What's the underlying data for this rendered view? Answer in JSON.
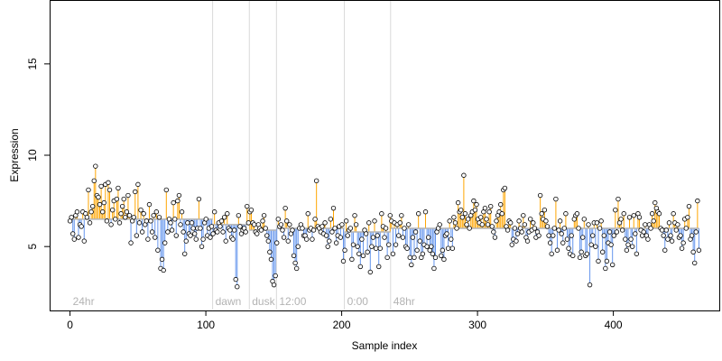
{
  "chart_data": {
    "type": "scatter",
    "title": "",
    "xlabel": "Sample index",
    "ylabel": "Expression",
    "xlim": [
      -15,
      478
    ],
    "ylim": [
      1.5,
      18.5
    ],
    "x_ticks": [
      0,
      100,
      200,
      300,
      400
    ],
    "y_ticks": [
      5,
      10,
      15
    ],
    "grid": false,
    "legend": "none",
    "colors": {
      "above_baseline": "#ffa500",
      "below_baseline": "#6495ed",
      "baseline": "#b3b3b3",
      "point_fill": "#ffffff",
      "point_stroke": "#000000",
      "divider": "#d9d9d9"
    },
    "segments": [
      {
        "label": "24hr",
        "start": 0,
        "baseline": 6.5
      },
      {
        "label": "dawn",
        "start": 105,
        "baseline": 6.2
      },
      {
        "label": "dusk",
        "start": 132,
        "baseline": 5.9
      },
      {
        "label": "12:00",
        "start": 152,
        "baseline": 6.0
      },
      {
        "label": "0:00",
        "start": 202,
        "baseline": 5.8
      },
      {
        "label": "48hr",
        "start": 236,
        "baseline": 6.0
      }
    ],
    "x_max": 463,
    "series": [
      {
        "values": [
          6.4,
          6.6,
          5.7,
          5.4,
          6.7,
          6.9,
          5.5,
          6.2,
          6.1,
          6.9,
          5.3,
          6.8,
          6.6,
          8.1,
          6.3,
          6.9,
          7.2,
          8.6,
          9.4,
          7.8,
          7.7,
          7.3,
          8.3,
          6.9,
          7.4,
          8.4,
          6.4,
          8.5,
          8.1,
          6.2,
          7.0,
          7.5,
          6.5,
          7.6,
          8.2,
          6.3,
          6.8,
          7.2,
          7.6,
          6.6,
          6.9,
          7.8,
          6.7,
          5.2,
          6.4,
          6.6,
          8.0,
          5.6,
          8.4,
          6.3,
          7.0,
          5.8,
          6.8,
          6.2,
          6.4,
          5.4,
          7.3,
          6.4,
          5.8,
          6.7,
          5.5,
          6.9,
          4.8,
          6.6,
          3.8,
          4.3,
          3.7,
          5.2,
          8.1,
          5.8,
          6.5,
          6.3,
          5.9,
          7.4,
          6.5,
          5.6,
          7.5,
          7.8,
          6.2,
          6.9,
          5.8,
          4.6,
          5.3,
          6.3,
          5.7,
          5.6,
          6.3,
          6.0,
          5.7,
          5.4,
          6.0,
          7.6,
          6.0,
          5.0,
          5.4,
          6.3,
          6.5,
          5.6,
          6.0,
          5.5,
          6.1,
          5.7,
          6.9,
          5.9,
          5.8,
          6.3,
          6.1,
          6.4,
          5.8,
          6.6,
          5.3,
          6.8,
          6.0,
          5.9,
          5.5,
          5.4,
          5.9,
          3.2,
          2.8,
          6.7,
          6.1,
          5.7,
          5.9,
          6.0,
          5.8,
          7.2,
          6.3,
          6.9,
          7.0,
          6.3,
          6.2,
          5.8,
          5.7,
          6.2,
          6.0,
          5.9,
          6.4,
          6.7,
          6.0,
          5.6,
          5.3,
          4.7,
          4.3,
          3.1,
          2.9,
          3.4,
          5.2,
          6.5,
          6.1,
          6.2,
          5.9,
          5.5,
          7.1,
          6.4,
          5.3,
          6.2,
          5.7,
          5.9,
          4.5,
          4.1,
          3.8,
          5.0,
          6.0,
          6.2,
          6.0,
          5.6,
          5.6,
          5.4,
          6.8,
          5.9,
          6.0,
          5.4,
          5.9,
          6.5,
          8.6,
          6.1,
          6.0,
          5.8,
          6.1,
          5.7,
          6.3,
          5.6,
          5.0,
          5.3,
          6.5,
          5.8,
          7.1,
          6.0,
          5.2,
          5.6,
          6.1,
          5.5,
          6.2,
          4.2,
          4.8,
          6.4,
          5.6,
          5.9,
          6.0,
          4.3,
          5.1,
          6.7,
          6.2,
          5.0,
          4.6,
          3.9,
          5.4,
          4.5,
          5.9,
          5.7,
          4.7,
          6.3,
          3.6,
          5.0,
          5.5,
          6.4,
          4.9,
          5.6,
          3.9,
          4.9,
          6.8,
          6.1,
          5.5,
          6.0,
          4.4,
          5.1,
          6.7,
          6.4,
          4.6,
          6.3,
          5.1,
          6.2,
          5.6,
          6.3,
          6.7,
          5.5,
          6.0,
          5.0,
          4.9,
          6.2,
          4.4,
          4.0,
          5.5,
          4.4,
          5.8,
          4.8,
          6.8,
          5.3,
          4.4,
          4.6,
          5.1,
          6.9,
          5.0,
          5.5,
          4.8,
          5.0,
          4.6,
          3.8,
          4.4,
          5.8,
          6.0,
          6.2,
          4.5,
          4.8,
          4.3,
          5.6,
          5.7,
          4.9,
          6.4,
          5.4,
          4.9,
          6.6,
          6.3,
          6.0,
          7.4,
          6.9,
          7.0,
          6.6,
          8.9,
          6.8,
          6.2,
          6.5,
          6.0,
          6.7,
          6.9,
          7.5,
          7.0,
          7.3,
          6.5,
          6.3,
          6.6,
          6.2,
          6.9,
          7.1,
          6.5,
          6.2,
          6.9,
          7.2,
          6.1,
          5.8,
          5.5,
          6.4,
          6.7,
          6.9,
          7.3,
          6.8,
          8.1,
          8.2,
          6.1,
          5.9,
          6.4,
          6.3,
          5.1,
          5.4,
          6.0,
          5.3,
          5.7,
          6.4,
          6.0,
          5.8,
          6.7,
          6.2,
          5.5,
          5.3,
          5.8,
          6.5,
          5.9,
          6.3,
          6.0,
          5.5,
          5.8,
          5.6,
          7.8,
          6.8,
          6.5,
          7.0,
          6.4,
          6.1,
          5.6,
          5.2,
          4.6,
          5.6,
          6.0,
          7.6,
          4.8,
          5.9,
          6.4,
          5.7,
          5.2,
          6.0,
          6.8,
          5.4,
          4.9,
          4.6,
          5.6,
          4.5,
          6.5,
          6.7,
          6.8,
          6.0,
          4.4,
          4.7,
          5.5,
          6.5,
          4.5,
          4.6,
          6.2,
          2.9,
          5.1,
          5.6,
          6.3,
          5.0,
          6.3,
          4.2,
          6.0,
          6.4,
          4.7,
          5.6,
          3.8,
          4.2,
          5.2,
          5.8,
          5.1,
          4.0,
          5.6,
          7.0,
          5.8,
          7.6,
          6.3,
          6.5,
          5.9,
          6.8,
          5.4,
          4.8,
          5.1,
          6.6,
          5.4,
          5.0,
          6.7,
          5.7,
          4.6,
          6.8,
          6.6,
          5.9,
          5.6,
          5.8,
          6.2,
          5.6,
          5.4,
          6.2,
          6.0,
          6.8,
          6.4,
          7.4,
          7.1,
          6.9,
          6.8,
          6.0,
          5.9,
          5.6,
          4.8,
          5.9,
          5.4,
          6.3,
          5.6,
          5.3,
          6.8,
          6.3,
          5.9,
          6.2,
          5.5,
          5.6,
          4.9,
          5.2,
          6.5,
          6.0,
          6.6,
          7.2,
          5.4,
          5.6,
          4.7,
          4.1,
          5.8,
          7.5,
          4.8
        ]
      }
    ]
  }
}
